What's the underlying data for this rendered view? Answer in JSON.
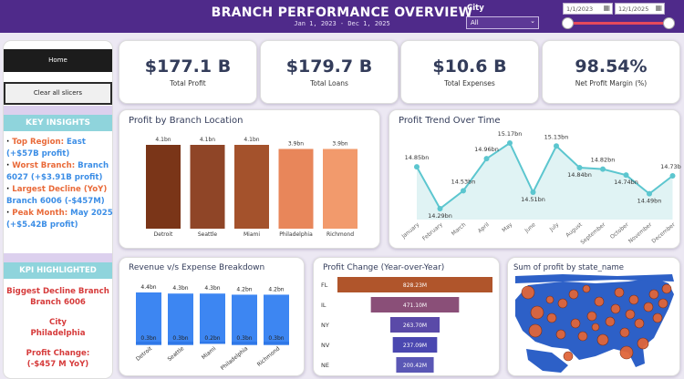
{
  "header": {
    "title": "BRANCH PERFORMANCE OVERVIEW",
    "subtitle": "Jan 1, 2023 - Dec 1, 2025",
    "city_label": "City",
    "city_value": "All",
    "date_from": "1/1/2023",
    "date_to": "12/1/2025"
  },
  "sidebar": {
    "home_label": "Home",
    "clear_label": "Clear all slicers",
    "insights_title": "KEY INSIGHTS",
    "insights": [
      {
        "label": "Top Region: ",
        "value": "East (+$57B profit)"
      },
      {
        "label": "Worst Branch: ",
        "value": "Branch 6027 (+$3.91B profit)"
      },
      {
        "label": "Largest Decline (YoY) ",
        "value": "Branch 6006 (-$457M)"
      },
      {
        "label": "Peak Month: ",
        "value": "May 2025 (+$5.42B profit)"
      }
    ],
    "kpi_title": "KPI HIGHLIGHTED",
    "kpi_lines": [
      "Biggest Decline Branch",
      "Branch 6006",
      "City",
      "Philadelphia",
      "Profit Change:",
      "(-$457 M YoY)"
    ]
  },
  "kpis": [
    {
      "value": "$177.1 B",
      "label": "Total Profit"
    },
    {
      "value": "$179.7 B",
      "label": "Total Loans"
    },
    {
      "value": "$10.6 B",
      "label": "Total Expenses"
    },
    {
      "value": "98.54%",
      "label": "Net Profit Margin (%)"
    }
  ],
  "panels": {
    "branch_title": "Profit by Branch Location",
    "trend_title": "Profit Trend Over Time",
    "revexp_title": "Revenue v/s Expense Breakdown",
    "change_title": "Profit Change (Year-over-Year)",
    "map_title": "Sum of profit by state_name"
  },
  "chart_data": [
    {
      "type": "bar",
      "title": "Profit by Branch Location",
      "categories": [
        "Detroit",
        "Seattle",
        "Miami",
        "Philadelphia",
        "Richmond"
      ],
      "values": [
        4.1,
        4.1,
        4.1,
        3.9,
        3.9
      ],
      "labels": [
        "4.1bn",
        "4.1bn",
        "4.1bn",
        "3.9bn",
        "3.9bn"
      ],
      "colors": [
        "#7a3518",
        "#8f4527",
        "#a4522c",
        "#e8865a",
        "#f29a6c"
      ],
      "ylim": [
        0,
        4.1
      ]
    },
    {
      "type": "line",
      "title": "Profit Trend Over Time",
      "categories": [
        "January",
        "February",
        "March",
        "April",
        "May",
        "June",
        "July",
        "August",
        "September",
        "October",
        "November",
        "December"
      ],
      "values": [
        14.85,
        14.29,
        14.53,
        14.96,
        15.17,
        14.51,
        15.13,
        14.84,
        14.82,
        14.74,
        14.49,
        14.73
      ],
      "labels": [
        "14.85bn",
        "14.29bn",
        "14.53bn",
        "14.96bn",
        "15.17bn",
        "14.51bn",
        "15.13bn",
        "14.84bn",
        "14.82bn",
        "14.74bn",
        "14.49bn",
        "14.73bn"
      ],
      "colors": {
        "line": "#5cc6cf",
        "area": "#e0f3f4"
      }
    },
    {
      "type": "bar",
      "title": "Revenue v/s Expense Breakdown",
      "categories": [
        "Detroit",
        "Seattle",
        "Miami",
        "Philadelphia",
        "Richmond"
      ],
      "series": [
        {
          "values": [
            4.4,
            4.3,
            4.3,
            4.2,
            4.2
          ],
          "labels": [
            "4.4bn",
            "4.3bn",
            "4.3bn",
            "4.2bn",
            "4.2bn"
          ]
        },
        {
          "values": [
            0.3,
            0.3,
            0.2,
            0.3,
            0.3
          ],
          "labels": [
            "0.3bn",
            "0.3bn",
            "0.2bn",
            "0.3bn",
            "0.3bn"
          ]
        }
      ],
      "colors": {
        "bar": "#3d86f2"
      }
    },
    {
      "type": "bar",
      "title": "Profit Change (Year-over-Year)",
      "categories": [
        "FL",
        "IL",
        "NY",
        "NV",
        "NE"
      ],
      "values": [
        828.23,
        471.1,
        263.7,
        237.09,
        200.42
      ],
      "labels": [
        "828.23M",
        "471.10M",
        "263.70M",
        "237.09M",
        "200.42M"
      ],
      "colors": [
        "#b0552b",
        "#8a4f78",
        "#5a4aa8",
        "#4a47b0",
        "#5a57b5"
      ]
    }
  ],
  "map": {
    "land_color": "#2d60c7",
    "bubble_color": "#e0663a"
  }
}
